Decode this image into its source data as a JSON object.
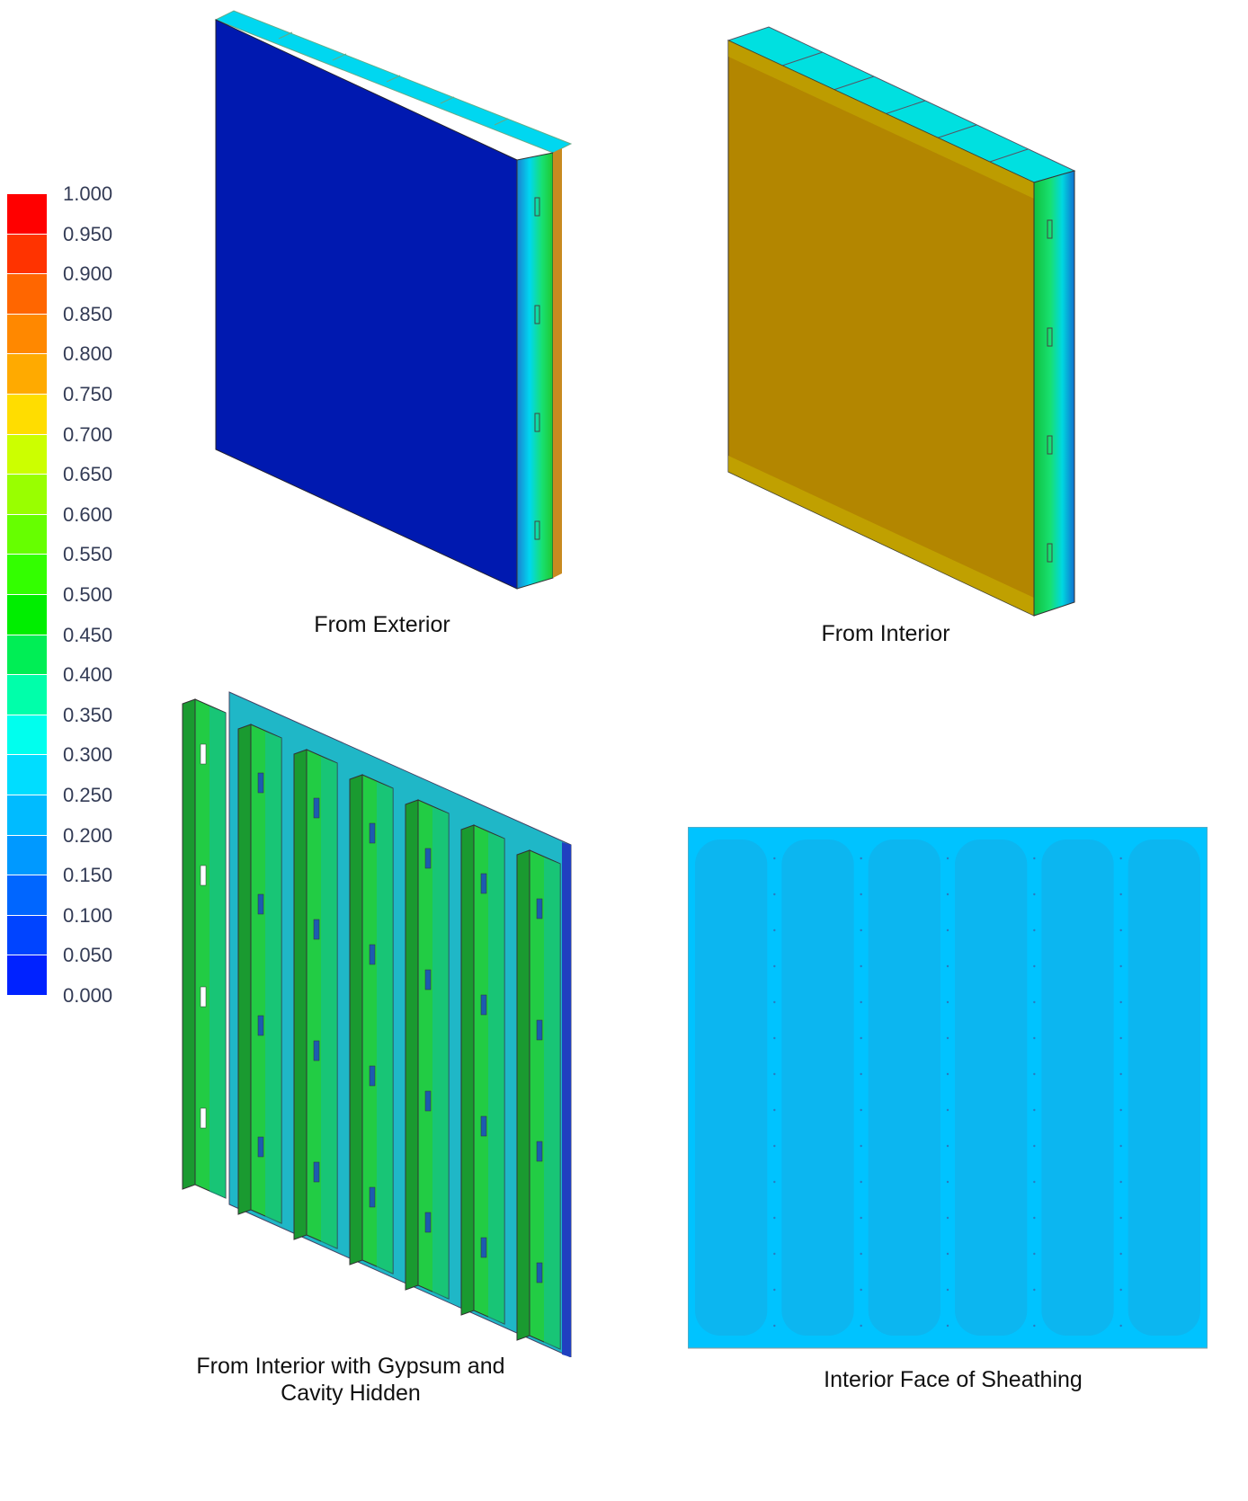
{
  "legend": {
    "labels": [
      "1.000",
      "0.950",
      "0.900",
      "0.850",
      "0.800",
      "0.750",
      "0.700",
      "0.650",
      "0.600",
      "0.550",
      "0.500",
      "0.450",
      "0.400",
      "0.350",
      "0.300",
      "0.250",
      "0.200",
      "0.150",
      "0.100",
      "0.050",
      "0.000"
    ],
    "colors": [
      "#ff0000",
      "#ff3300",
      "#ff6600",
      "#ff8800",
      "#ffaa00",
      "#ffdd00",
      "#ccff00",
      "#99ff00",
      "#66ff00",
      "#33ff00",
      "#00ee00",
      "#00ee55",
      "#00ffaa",
      "#00ffee",
      "#00ddff",
      "#00bbff",
      "#0099ff",
      "#0066ff",
      "#0044ff",
      "#0022ff",
      "#0000ff"
    ]
  },
  "views": {
    "exterior": {
      "caption": "From Exterior",
      "face_color": "#0019b0",
      "edge_color": "#00d7f0"
    },
    "interior": {
      "caption": "From Interior",
      "face_color": "#b38600",
      "edge_color": "#00e0e0"
    },
    "studs": {
      "caption_line1": "From Interior with Gypsum and",
      "caption_line2": "Cavity Hidden",
      "stud_color": "#22cc44",
      "cavity_color": "#1fb7c7"
    },
    "sheathing": {
      "caption": "Interior Face of Sheathing",
      "face_color": "#00c3ff",
      "panel_color": "#0cb6f0"
    }
  }
}
